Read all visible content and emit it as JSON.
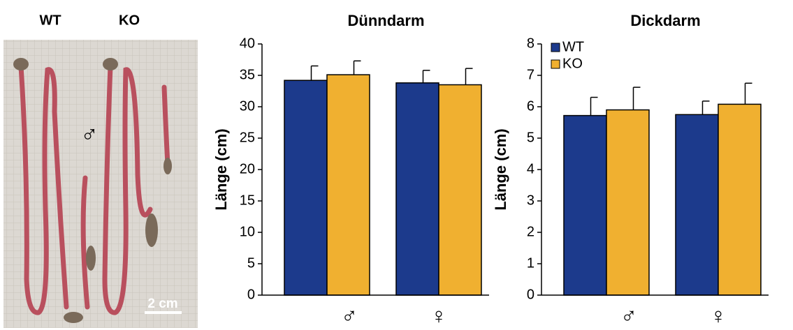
{
  "photo": {
    "left_label": "WT",
    "right_label": "KO",
    "symbol": "♂",
    "scale_bar": "2 cm"
  },
  "chart_data": [
    {
      "type": "bar",
      "title": "Dünndarm",
      "y_label": "Länge (cm)",
      "categories": [
        "♂",
        "♀"
      ],
      "series": [
        {
          "color": "#1c3a8c",
          "values": [
            34.2,
            33.8
          ],
          "errors": [
            2.3,
            2.0
          ]
        },
        {
          "color": "#f0b030",
          "values": [
            35.1,
            33.5
          ],
          "errors": [
            2.2,
            2.6
          ]
        }
      ],
      "ylim": [
        0,
        40
      ],
      "yticks": [
        0,
        5,
        10,
        15,
        20,
        25,
        30,
        35,
        40
      ],
      "legend": false
    },
    {
      "type": "bar",
      "title": "Dickdarm",
      "y_label": "Länge (cm)",
      "categories": [
        "♂",
        "♀"
      ],
      "series": [
        {
          "name": "WT",
          "color": "#1c3a8c",
          "values": [
            5.72,
            5.75
          ],
          "errors": [
            0.58,
            0.43
          ]
        },
        {
          "name": "KO",
          "color": "#f0b030",
          "values": [
            5.9,
            6.08
          ],
          "errors": [
            0.72,
            0.67
          ]
        }
      ],
      "ylim": [
        0,
        8
      ],
      "yticks": [
        0,
        1,
        2,
        3,
        4,
        5,
        6,
        7,
        8
      ],
      "legend": "top-left"
    }
  ]
}
